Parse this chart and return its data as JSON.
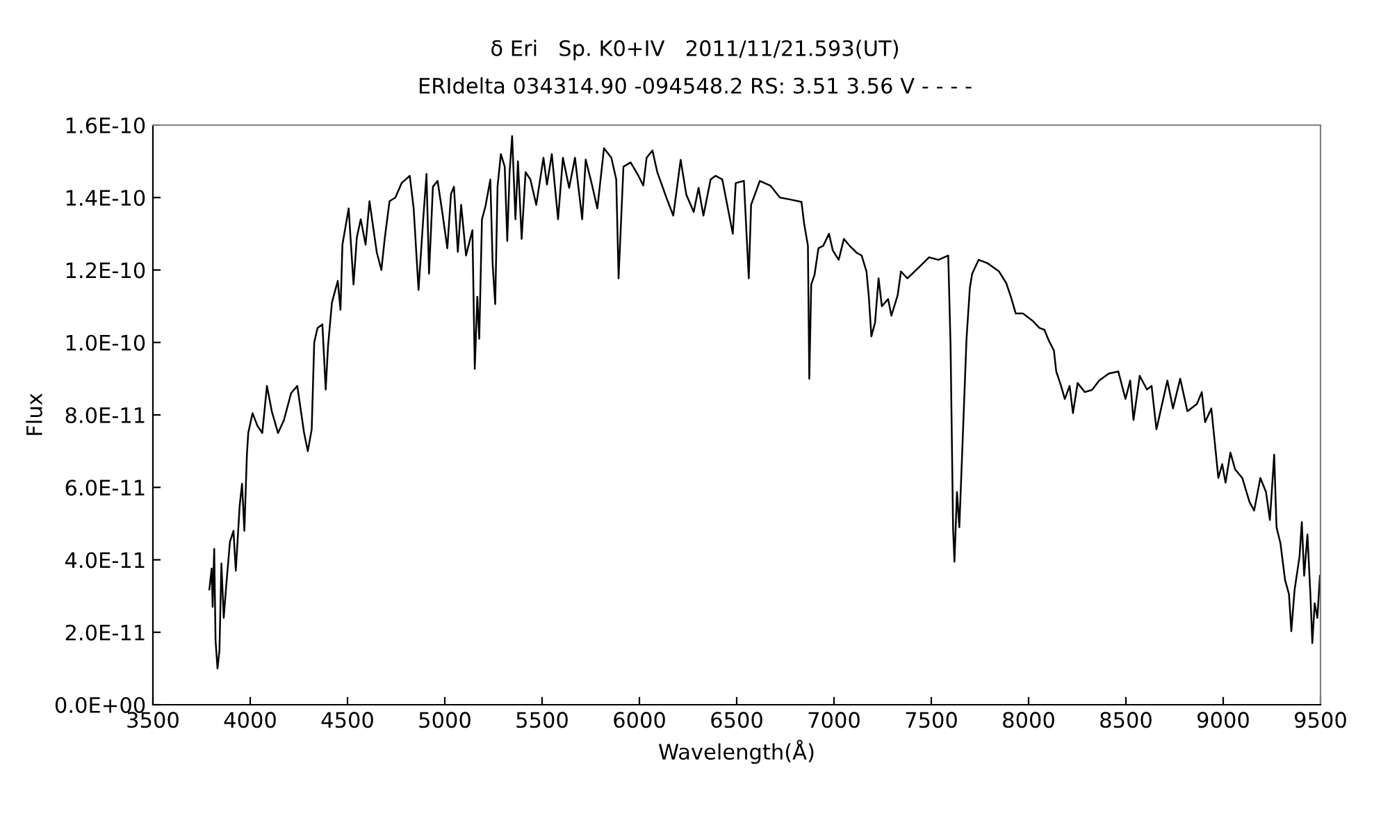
{
  "chart_data": {
    "type": "line",
    "title": "δ Eri   Sp. K0+IV   2011/11/21.593(UT)",
    "subtitle": "ERIdelta 034314.90 -094548.2 RS: 3.51 3.56 V - - - -",
    "xlabel": "Wavelength(Å)",
    "ylabel": "Flux",
    "xlim": [
      3500,
      9500
    ],
    "xticks": [
      3500,
      4000,
      4500,
      5000,
      5500,
      6000,
      6500,
      7000,
      7500,
      8000,
      8500,
      9000,
      9500
    ],
    "ylim": [
      0,
      1.6e-10
    ],
    "yticks": [
      {
        "value": 0,
        "label": "0.0E+00"
      },
      {
        "value": 2e-11,
        "label": "2.0E-11"
      },
      {
        "value": 4e-11,
        "label": "4.0E-11"
      },
      {
        "value": 6e-11,
        "label": "6.0E-11"
      },
      {
        "value": 8e-11,
        "label": "8.0E-11"
      },
      {
        "value": 1e-10,
        "label": "1.0E-10"
      },
      {
        "value": 1.2e-10,
        "label": "1.2E-10"
      },
      {
        "value": 1.4e-10,
        "label": "1.4E-10"
      },
      {
        "value": 1.6e-10,
        "label": "1.6E-10"
      }
    ],
    "grid": false,
    "legend": false,
    "marker": "none",
    "line_style": "solid",
    "series": [
      {
        "color": "#000000",
        "x": [
          3790,
          3802,
          3807,
          3815,
          3822,
          3832,
          3842,
          3852,
          3864,
          3877,
          3896,
          3914,
          3926,
          3946,
          3958,
          3970,
          3983,
          3990,
          4012,
          4037,
          4062,
          4086,
          4111,
          4143,
          4173,
          4210,
          4242,
          4277,
          4296,
          4316,
          4329,
          4346,
          4371,
          4388,
          4400,
          4420,
          4450,
          4464,
          4474,
          4506,
          4531,
          4548,
          4568,
          4593,
          4613,
          4650,
          4674,
          4692,
          4716,
          4746,
          4778,
          4820,
          4840,
          4865,
          4889,
          4906,
          4919,
          4939,
          4963,
          4988,
          5013,
          5032,
          5047,
          5067,
          5084,
          5109,
          5142,
          5154,
          5167,
          5177,
          5191,
          5209,
          5234,
          5246,
          5259,
          5271,
          5288,
          5308,
          5321,
          5333,
          5346,
          5363,
          5376,
          5395,
          5415,
          5440,
          5470,
          5507,
          5525,
          5550,
          5582,
          5607,
          5639,
          5669,
          5706,
          5724,
          5756,
          5784,
          5818,
          5856,
          5881,
          5893,
          5918,
          5955,
          5995,
          6020,
          6037,
          6067,
          6092,
          6142,
          6174,
          6212,
          6241,
          6279,
          6304,
          6329,
          6366,
          6391,
          6426,
          6480,
          6495,
          6537,
          6562,
          6574,
          6619,
          6673,
          6722,
          6772,
          6833,
          6846,
          6866,
          6873,
          6883,
          6900,
          6920,
          6945,
          6974,
          6994,
          7024,
          7051,
          7080,
          7118,
          7142,
          7167,
          7179,
          7192,
          7211,
          7229,
          7246,
          7278,
          7295,
          7327,
          7344,
          7377,
          7414,
          7451,
          7488,
          7537,
          7587,
          7599,
          7612,
          7619,
          7632,
          7644,
          7661,
          7681,
          7698,
          7710,
          7743,
          7784,
          7799,
          7848,
          7885,
          7909,
          7934,
          7971,
          8020,
          8056,
          8081,
          8105,
          8130,
          8142,
          8167,
          8186,
          8211,
          8228,
          8252,
          8289,
          8326,
          8363,
          8412,
          8461,
          8498,
          8522,
          8539,
          8571,
          8608,
          8632,
          8657,
          8681,
          8713,
          8742,
          8779,
          8816,
          8865,
          8890,
          8907,
          8939,
          8956,
          8975,
          8995,
          9012,
          9037,
          9061,
          9098,
          9135,
          9159,
          9191,
          9220,
          9240,
          9262,
          9274,
          9294,
          9318,
          9338,
          9350,
          9367,
          9392,
          9404,
          9416,
          9433,
          9448,
          9458,
          9470,
          9484,
          9497
        ],
        "values": [
          3.18e-11,
          3.76e-11,
          2.7e-11,
          4.3e-11,
          1.77e-11,
          1e-11,
          1.5e-11,
          3.9e-11,
          2.4e-11,
          3.3e-11,
          4.5e-11,
          4.8e-11,
          3.7e-11,
          5.5e-11,
          6.1e-11,
          4.8e-11,
          6.9e-11,
          7.5e-11,
          8.05e-11,
          7.7e-11,
          7.5e-11,
          8.8e-11,
          8.1e-11,
          7.5e-11,
          7.85e-11,
          8.6e-11,
          8.8e-11,
          7.5e-11,
          7e-11,
          7.6e-11,
          1e-10,
          1.04e-10,
          1.05e-10,
          8.7e-11,
          9.9e-11,
          1.11e-10,
          1.17e-10,
          1.09e-10,
          1.27e-10,
          1.37e-10,
          1.16e-10,
          1.29e-10,
          1.34e-10,
          1.27e-10,
          1.39e-10,
          1.25e-10,
          1.2e-10,
          1.29e-10,
          1.39e-10,
          1.4e-10,
          1.44e-10,
          1.46e-10,
          1.37e-10,
          1.145e-10,
          1.34e-10,
          1.465e-10,
          1.19e-10,
          1.43e-10,
          1.446e-10,
          1.356e-10,
          1.26e-10,
          1.41e-10,
          1.43e-10,
          1.25e-10,
          1.38e-10,
          1.24e-10,
          1.31e-10,
          9.27e-11,
          1.126e-10,
          1.01e-10,
          1.34e-10,
          1.376e-10,
          1.45e-10,
          1.215e-10,
          1.106e-10,
          1.43e-10,
          1.52e-10,
          1.485e-10,
          1.28e-10,
          1.47e-10,
          1.57e-10,
          1.34e-10,
          1.5e-10,
          1.286e-10,
          1.47e-10,
          1.45e-10,
          1.38e-10,
          1.51e-10,
          1.436e-10,
          1.52e-10,
          1.34e-10,
          1.51e-10,
          1.427e-10,
          1.51e-10,
          1.34e-10,
          1.505e-10,
          1.436e-10,
          1.37e-10,
          1.536e-10,
          1.51e-10,
          1.45e-10,
          1.177e-10,
          1.485e-10,
          1.497e-10,
          1.46e-10,
          1.433e-10,
          1.51e-10,
          1.53e-10,
          1.47e-10,
          1.395e-10,
          1.35e-10,
          1.504e-10,
          1.408e-10,
          1.36e-10,
          1.427e-10,
          1.35e-10,
          1.45e-10,
          1.46e-10,
          1.45e-10,
          1.3e-10,
          1.44e-10,
          1.446e-10,
          1.177e-10,
          1.38e-10,
          1.446e-10,
          1.433e-10,
          1.4e-10,
          1.395e-10,
          1.388e-10,
          1.33e-10,
          1.267e-10,
          9e-11,
          1.16e-10,
          1.187e-10,
          1.26e-10,
          1.267e-10,
          1.3e-10,
          1.254e-10,
          1.228e-10,
          1.286e-10,
          1.267e-10,
          1.247e-10,
          1.24e-10,
          1.196e-10,
          1.126e-10,
          1.017e-10,
          1.055e-10,
          1.177e-10,
          1.1e-10,
          1.12e-10,
          1.074e-10,
          1.13e-10,
          1.196e-10,
          1.177e-10,
          1.196e-10,
          1.215e-10,
          1.235e-10,
          1.228e-10,
          1.24e-10,
          9.9e-11,
          4.85e-11,
          3.95e-11,
          5.87e-11,
          4.9e-11,
          7.28e-11,
          1.01e-10,
          1.15e-10,
          1.19e-10,
          1.228e-10,
          1.22e-10,
          1.215e-10,
          1.196e-10,
          1.164e-10,
          1.126e-10,
          1.08e-10,
          1.08e-10,
          1.06e-10,
          1.04e-10,
          1.035e-10,
          1.004e-10,
          9.78e-11,
          9.2e-11,
          8.8e-11,
          8.44e-11,
          8.8e-11,
          8.05e-11,
          8.88e-11,
          8.63e-11,
          8.69e-11,
          8.95e-11,
          9.14e-11,
          9.2e-11,
          8.44e-11,
          8.95e-11,
          7.86e-11,
          9.08e-11,
          8.7e-11,
          8.8e-11,
          7.6e-11,
          8.18e-11,
          8.95e-11,
          8.18e-11,
          9e-11,
          8.1e-11,
          8.3e-11,
          8.63e-11,
          7.8e-11,
          8.18e-11,
          7.28e-11,
          6.26e-11,
          6.64e-11,
          6.13e-11,
          6.96e-11,
          6.5e-11,
          6.26e-11,
          5.6e-11,
          5.36e-11,
          6.26e-11,
          5.87e-11,
          5.1e-11,
          6.9e-11,
          4.9e-11,
          4.46e-11,
          3.44e-11,
          3.05e-11,
          2.03e-11,
          3.18e-11,
          4.08e-11,
          5.04e-11,
          3.56e-11,
          4.7e-11,
          3.05e-11,
          1.7e-11,
          2.8e-11,
          2.4e-11,
          3.56e-11
        ]
      }
    ]
  }
}
